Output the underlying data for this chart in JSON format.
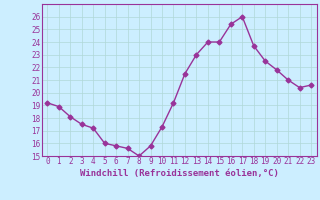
{
  "x": [
    0,
    1,
    2,
    3,
    4,
    5,
    6,
    7,
    8,
    9,
    10,
    11,
    12,
    13,
    14,
    15,
    16,
    17,
    18,
    19,
    20,
    21,
    22,
    23
  ],
  "y": [
    19.2,
    18.9,
    18.1,
    17.5,
    17.2,
    16.0,
    15.8,
    15.6,
    15.0,
    15.8,
    17.3,
    19.2,
    21.5,
    23.0,
    24.0,
    24.0,
    25.4,
    26.0,
    23.7,
    22.5,
    21.8,
    21.0,
    20.4,
    20.6
  ],
  "line_color": "#993399",
  "marker": "D",
  "marker_size": 2.5,
  "linewidth": 1.0,
  "ylim": [
    15,
    27
  ],
  "xlim": [
    -0.5,
    23.5
  ],
  "yticks": [
    15,
    16,
    17,
    18,
    19,
    20,
    21,
    22,
    23,
    24,
    25,
    26
  ],
  "xtick_labels": [
    "0",
    "1",
    "2",
    "3",
    "4",
    "5",
    "6",
    "7",
    "8",
    "9",
    "10",
    "11",
    "12",
    "13",
    "14",
    "15",
    "16",
    "17",
    "18",
    "19",
    "20",
    "21",
    "22",
    "23"
  ],
  "xlabel": "Windchill (Refroidissement éolien,°C)",
  "background_color": "#cceeff",
  "grid_color": "#b0d8d8",
  "tick_color": "#993399",
  "label_color": "#993399",
  "tick_fontsize": 5.5,
  "xlabel_fontsize": 6.5
}
